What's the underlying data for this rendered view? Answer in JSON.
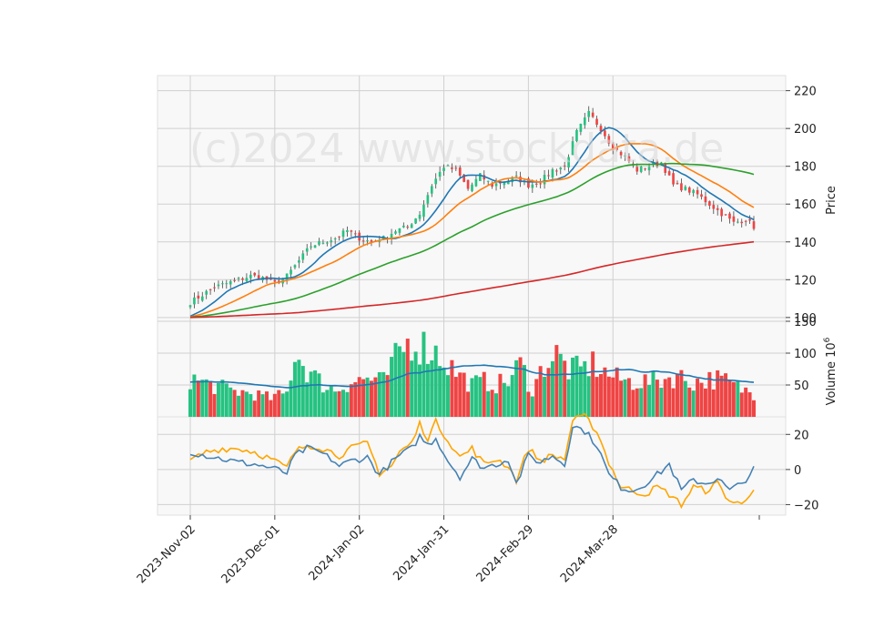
{
  "watermark": "(c)2024 www.stockdata.de",
  "chart_data": {
    "type": "candlestick",
    "x_tick_labels": [
      "2023-Nov-02",
      "2023-Dec-01",
      "2024-Jan-02",
      "2024-Jan-31",
      "2024-Feb-29",
      "2024-Mar-28"
    ],
    "price_panel": {
      "ylabel": "Price",
      "ylim": [
        98,
        228
      ],
      "y_ticks": [
        100,
        120,
        140,
        160,
        180,
        200,
        220
      ],
      "close_anchors": [
        [
          0,
          108
        ],
        [
          3,
          112
        ],
        [
          6,
          116
        ],
        [
          9,
          118
        ],
        [
          12,
          120
        ],
        [
          15,
          122
        ],
        [
          18,
          121
        ],
        [
          21,
          118
        ],
        [
          24,
          122
        ],
        [
          27,
          130
        ],
        [
          30,
          138
        ],
        [
          33,
          140
        ],
        [
          36,
          142
        ],
        [
          39,
          146
        ],
        [
          42,
          142
        ],
        [
          45,
          140
        ],
        [
          48,
          142
        ],
        [
          51,
          146
        ],
        [
          54,
          148
        ],
        [
          57,
          155
        ],
        [
          60,
          170
        ],
        [
          63,
          180
        ],
        [
          66,
          178
        ],
        [
          69,
          168
        ],
        [
          72,
          175
        ],
        [
          75,
          170
        ],
        [
          78,
          172
        ],
        [
          81,
          174
        ],
        [
          84,
          170
        ],
        [
          87,
          172
        ],
        [
          90,
          178
        ],
        [
          93,
          180
        ],
        [
          96,
          198
        ],
        [
          99,
          208
        ],
        [
          102,
          200
        ],
        [
          105,
          190
        ],
        [
          108,
          185
        ],
        [
          111,
          178
        ],
        [
          114,
          180
        ],
        [
          117,
          182
        ],
        [
          120,
          170
        ],
        [
          123,
          168
        ],
        [
          126,
          165
        ],
        [
          129,
          160
        ],
        [
          132,
          155
        ],
        [
          135,
          150
        ],
        [
          138,
          152
        ],
        [
          140,
          148
        ]
      ],
      "colors": {
        "up": "#26c281",
        "down": "#ef4444",
        "ma1": "#1f77b4",
        "ma2": "#ff7f0e",
        "ma3": "#2ca02c",
        "ma4": "#d62728"
      },
      "moving_averages": [
        10,
        20,
        50,
        200
      ],
      "grid": true
    },
    "volume_panel": {
      "ylabel": "Volume",
      "exponent_label": "10",
      "exponent": "6",
      "ylim": [
        0,
        150
      ],
      "y_ticks": [
        50,
        100,
        150
      ],
      "volume_anchors": [
        [
          0,
          65
        ],
        [
          5,
          55
        ],
        [
          10,
          45
        ],
        [
          15,
          40
        ],
        [
          20,
          32
        ],
        [
          24,
          40
        ],
        [
          26,
          110
        ],
        [
          29,
          80
        ],
        [
          33,
          55
        ],
        [
          36,
          45
        ],
        [
          40,
          60
        ],
        [
          44,
          65
        ],
        [
          48,
          60
        ],
        [
          52,
          110
        ],
        [
          55,
          130
        ],
        [
          58,
          120
        ],
        [
          61,
          110
        ],
        [
          64,
          90
        ],
        [
          67,
          70
        ],
        [
          70,
          55
        ],
        [
          73,
          60
        ],
        [
          76,
          55
        ],
        [
          79,
          60
        ],
        [
          82,
          90
        ],
        [
          85,
          45
        ],
        [
          88,
          90
        ],
        [
          91,
          105
        ],
        [
          94,
          80
        ],
        [
          97,
          80
        ],
        [
          100,
          90
        ],
        [
          103,
          75
        ],
        [
          106,
          65
        ],
        [
          109,
          60
        ],
        [
          112,
          60
        ],
        [
          115,
          60
        ],
        [
          118,
          65
        ],
        [
          121,
          70
        ],
        [
          124,
          60
        ],
        [
          127,
          60
        ],
        [
          130,
          65
        ],
        [
          133,
          60
        ],
        [
          136,
          50
        ],
        [
          140,
          40
        ]
      ],
      "volume_ma_color": "#1f77b4"
    },
    "indicator_panel": {
      "ylim": [
        -26,
        30
      ],
      "y_ticks": [
        -20,
        0,
        20
      ],
      "line1_anchors": [
        [
          0,
          10
        ],
        [
          4,
          8
        ],
        [
          8,
          6
        ],
        [
          12,
          4
        ],
        [
          16,
          3
        ],
        [
          20,
          1
        ],
        [
          24,
          -2
        ],
        [
          26,
          8
        ],
        [
          29,
          12
        ],
        [
          32,
          10
        ],
        [
          35,
          6
        ],
        [
          37,
          2
        ],
        [
          40,
          5
        ],
        [
          44,
          7
        ],
        [
          47,
          -3
        ],
        [
          50,
          4
        ],
        [
          52,
          8
        ],
        [
          55,
          12
        ],
        [
          57,
          19
        ],
        [
          59,
          14
        ],
        [
          61,
          18
        ],
        [
          64,
          5
        ],
        [
          67,
          -4
        ],
        [
          70,
          6
        ],
        [
          73,
          1
        ],
        [
          76,
          3
        ],
        [
          79,
          6
        ],
        [
          81,
          -8
        ],
        [
          84,
          8
        ],
        [
          87,
          4
        ],
        [
          90,
          8
        ],
        [
          93,
          3
        ],
        [
          95,
          25
        ],
        [
          98,
          22
        ],
        [
          101,
          14
        ],
        [
          104,
          -3
        ],
        [
          107,
          -10
        ],
        [
          110,
          -12
        ],
        [
          113,
          -8
        ],
        [
          116,
          -3
        ],
        [
          119,
          3
        ],
        [
          122,
          -12
        ],
        [
          125,
          -6
        ],
        [
          128,
          -8
        ],
        [
          131,
          -5
        ],
        [
          134,
          -12
        ],
        [
          137,
          -8
        ],
        [
          140,
          0
        ]
      ],
      "line2_anchors": [
        [
          0,
          5
        ],
        [
          4,
          10
        ],
        [
          8,
          12
        ],
        [
          12,
          12
        ],
        [
          16,
          10
        ],
        [
          20,
          6
        ],
        [
          24,
          1
        ],
        [
          26,
          10
        ],
        [
          29,
          14
        ],
        [
          32,
          13
        ],
        [
          35,
          10
        ],
        [
          37,
          8
        ],
        [
          40,
          12
        ],
        [
          44,
          15
        ],
        [
          47,
          -2
        ],
        [
          50,
          2
        ],
        [
          52,
          10
        ],
        [
          55,
          15
        ],
        [
          57,
          26
        ],
        [
          59,
          18
        ],
        [
          61,
          27
        ],
        [
          64,
          17
        ],
        [
          67,
          7
        ],
        [
          70,
          12
        ],
        [
          73,
          3
        ],
        [
          76,
          6
        ],
        [
          79,
          2
        ],
        [
          81,
          -6
        ],
        [
          84,
          12
        ],
        [
          87,
          5
        ],
        [
          90,
          8
        ],
        [
          93,
          6
        ],
        [
          95,
          28
        ],
        [
          98,
          30
        ],
        [
          101,
          22
        ],
        [
          104,
          4
        ],
        [
          107,
          -10
        ],
        [
          110,
          -12
        ],
        [
          113,
          -14
        ],
        [
          116,
          -10
        ],
        [
          119,
          -14
        ],
        [
          122,
          -20
        ],
        [
          125,
          -10
        ],
        [
          128,
          -12
        ],
        [
          131,
          -8
        ],
        [
          134,
          -18
        ],
        [
          137,
          -20
        ],
        [
          140,
          -10
        ]
      ],
      "colors": {
        "line1": "#4682b4",
        "line2": "#ffa500"
      }
    },
    "n_days": 141,
    "grid": true
  }
}
